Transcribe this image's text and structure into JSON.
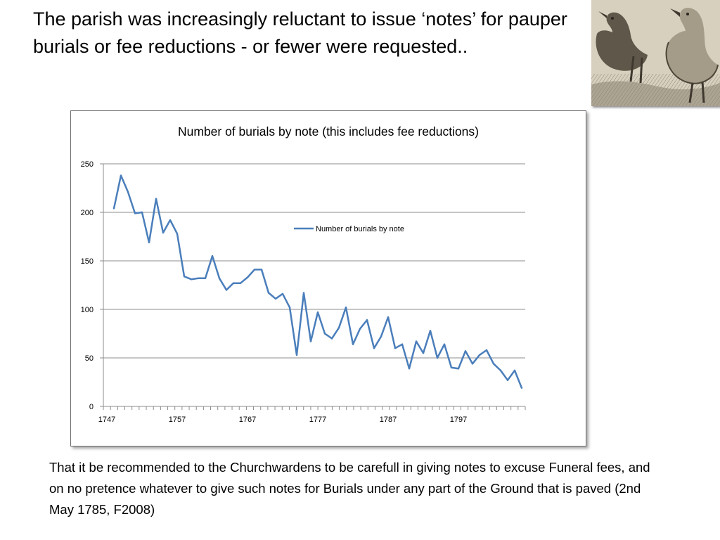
{
  "slide": {
    "title": "The parish was increasingly reluctant to issue ‘notes’ for pauper burials or fee reductions  - or fewer were requested..",
    "caption": "That it be recommended to the Churchwardens to be carefull in giving notes to excuse Funeral fees, and on no pretence whatever to give such notes for Burials under any part of the Ground that is paved (2nd May 1785, F2008)"
  },
  "picture": {
    "subject": "engraving of ducks"
  },
  "chart_data": {
    "type": "line",
    "title": "Number of burials by note (this includes fee reductions)",
    "xlabel": "",
    "ylabel": "",
    "xlim": [
      1747,
      1806
    ],
    "ylim": [
      0,
      250
    ],
    "x_tick_labels": [
      "1747",
      "1757",
      "1767",
      "1777",
      "1787",
      "1797"
    ],
    "y_tick_labels": [
      "0",
      "50",
      "100",
      "150",
      "200",
      "250"
    ],
    "grid": true,
    "legend_position": "center-right, inside plot",
    "series": [
      {
        "name": "Number of burials by note",
        "color": "#4a7ebb",
        "x": [
          1748,
          1749,
          1750,
          1751,
          1752,
          1753,
          1754,
          1755,
          1756,
          1757,
          1758,
          1759,
          1760,
          1761,
          1762,
          1763,
          1764,
          1765,
          1766,
          1767,
          1768,
          1769,
          1770,
          1771,
          1772,
          1773,
          1774,
          1775,
          1776,
          1777,
          1778,
          1779,
          1780,
          1781,
          1782,
          1783,
          1784,
          1785,
          1786,
          1787,
          1788,
          1789,
          1790,
          1791,
          1792,
          1793,
          1794,
          1795,
          1796,
          1797,
          1798,
          1799,
          1800,
          1801,
          1802,
          1803,
          1804,
          1805,
          1806
        ],
        "values": [
          204,
          238,
          221,
          199,
          200,
          169,
          214,
          179,
          192,
          178,
          134,
          131,
          132,
          132,
          155,
          132,
          120,
          127,
          127,
          133,
          141,
          141,
          117,
          111,
          116,
          102,
          53,
          117,
          67,
          97,
          75,
          70,
          81,
          102,
          64,
          80,
          89,
          60,
          72,
          92,
          60,
          64,
          39,
          67,
          55,
          78,
          50,
          64,
          40,
          39,
          57,
          44,
          53,
          58,
          44,
          37,
          27,
          37,
          19
        ]
      }
    ]
  }
}
